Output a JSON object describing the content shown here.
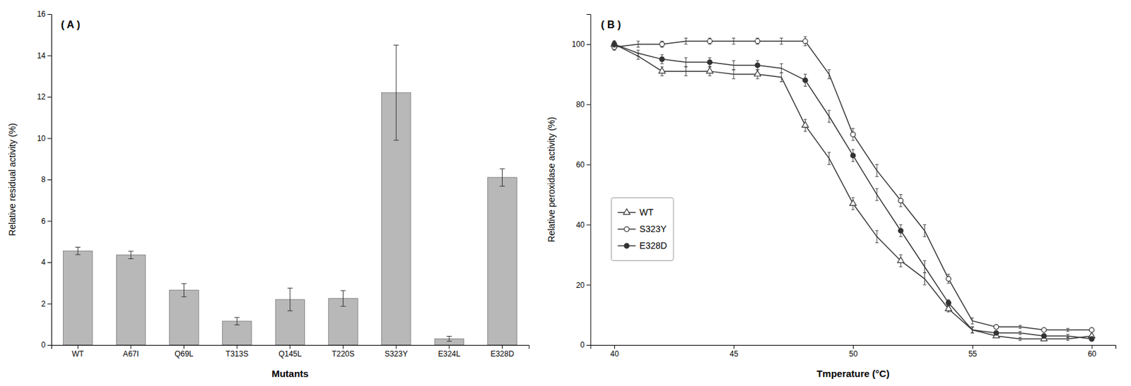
{
  "chart_data": [
    {
      "type": "bar",
      "categories": [
        "WT",
        "A67I",
        "Q69L",
        "T313S",
        "Q145L",
        "T220S",
        "S323Y",
        "E324L",
        "E328D"
      ],
      "values": [
        4.55,
        4.35,
        2.65,
        1.15,
        2.2,
        2.25,
        12.2,
        0.3,
        8.1
      ],
      "errors": [
        0.18,
        0.18,
        0.32,
        0.18,
        0.55,
        0.38,
        2.3,
        0.12,
        0.42
      ],
      "color": "#b8b8b8",
      "xlabel": "Mutants",
      "ylabel": "Relative residual activity (%)",
      "ylim": [
        0,
        16
      ],
      "yticks": [
        0,
        2,
        4,
        6,
        8,
        10,
        12,
        14,
        16
      ],
      "annotation": "( A )",
      "grid": false
    },
    {
      "type": "line",
      "x": [
        40,
        41,
        42,
        43,
        44,
        45,
        46,
        47,
        48,
        49,
        50,
        51,
        52,
        53,
        54,
        55,
        56,
        57,
        58,
        59,
        60
      ],
      "series": [
        {
          "name": "WT",
          "color": "#333333",
          "marker": "triangle-open",
          "line_style": "solid",
          "values": [
            100,
            96,
            91,
            91,
            91,
            90,
            90,
            89,
            73,
            62,
            47,
            36,
            28,
            22,
            12,
            5,
            3,
            2,
            2,
            2,
            3
          ],
          "errors": [
            1,
            1,
            1.5,
            1.5,
            1.5,
            1.5,
            1.5,
            1.5,
            2,
            2,
            2,
            2,
            2,
            2,
            1,
            1,
            0.5,
            0.5,
            0.5,
            0.5,
            0.5
          ]
        },
        {
          "name": "S323Y",
          "color": "#333333",
          "marker": "circle-open",
          "line_style": "solid",
          "values": [
            99,
            100,
            100,
            101,
            101,
            101,
            101,
            101,
            101,
            90,
            70,
            58,
            48,
            38,
            22,
            8,
            6,
            6,
            5,
            5,
            5
          ],
          "errors": [
            1,
            1,
            1,
            1,
            1,
            1,
            1,
            1,
            1.5,
            1.5,
            2,
            2,
            2,
            2,
            1.5,
            1,
            0.5,
            0.5,
            0.5,
            0.5,
            0.5
          ]
        },
        {
          "name": "E328D",
          "color": "#333333",
          "marker": "circle",
          "line_style": "solid",
          "values": [
            100,
            97,
            95,
            94,
            94,
            93,
            93,
            92,
            88,
            76,
            63,
            50,
            38,
            26,
            14,
            5,
            4,
            4,
            3,
            3,
            2
          ],
          "errors": [
            1,
            1,
            1.5,
            1.5,
            1.5,
            1.5,
            1.5,
            1.5,
            2,
            2,
            2,
            2,
            2,
            2,
            1,
            1,
            0.5,
            0.5,
            0.5,
            0.5,
            0.5
          ]
        }
      ],
      "xlabel": "Tmperature (°C)",
      "ylabel": "Relative peroxidase activity (%)",
      "xlim": [
        39,
        61
      ],
      "xticks": [
        40,
        45,
        50,
        55,
        60
      ],
      "ylim": [
        0,
        110
      ],
      "yticks": [
        0,
        20,
        40,
        60,
        80,
        100
      ],
      "legend": "left",
      "annotation": "( B )",
      "grid": false
    }
  ]
}
